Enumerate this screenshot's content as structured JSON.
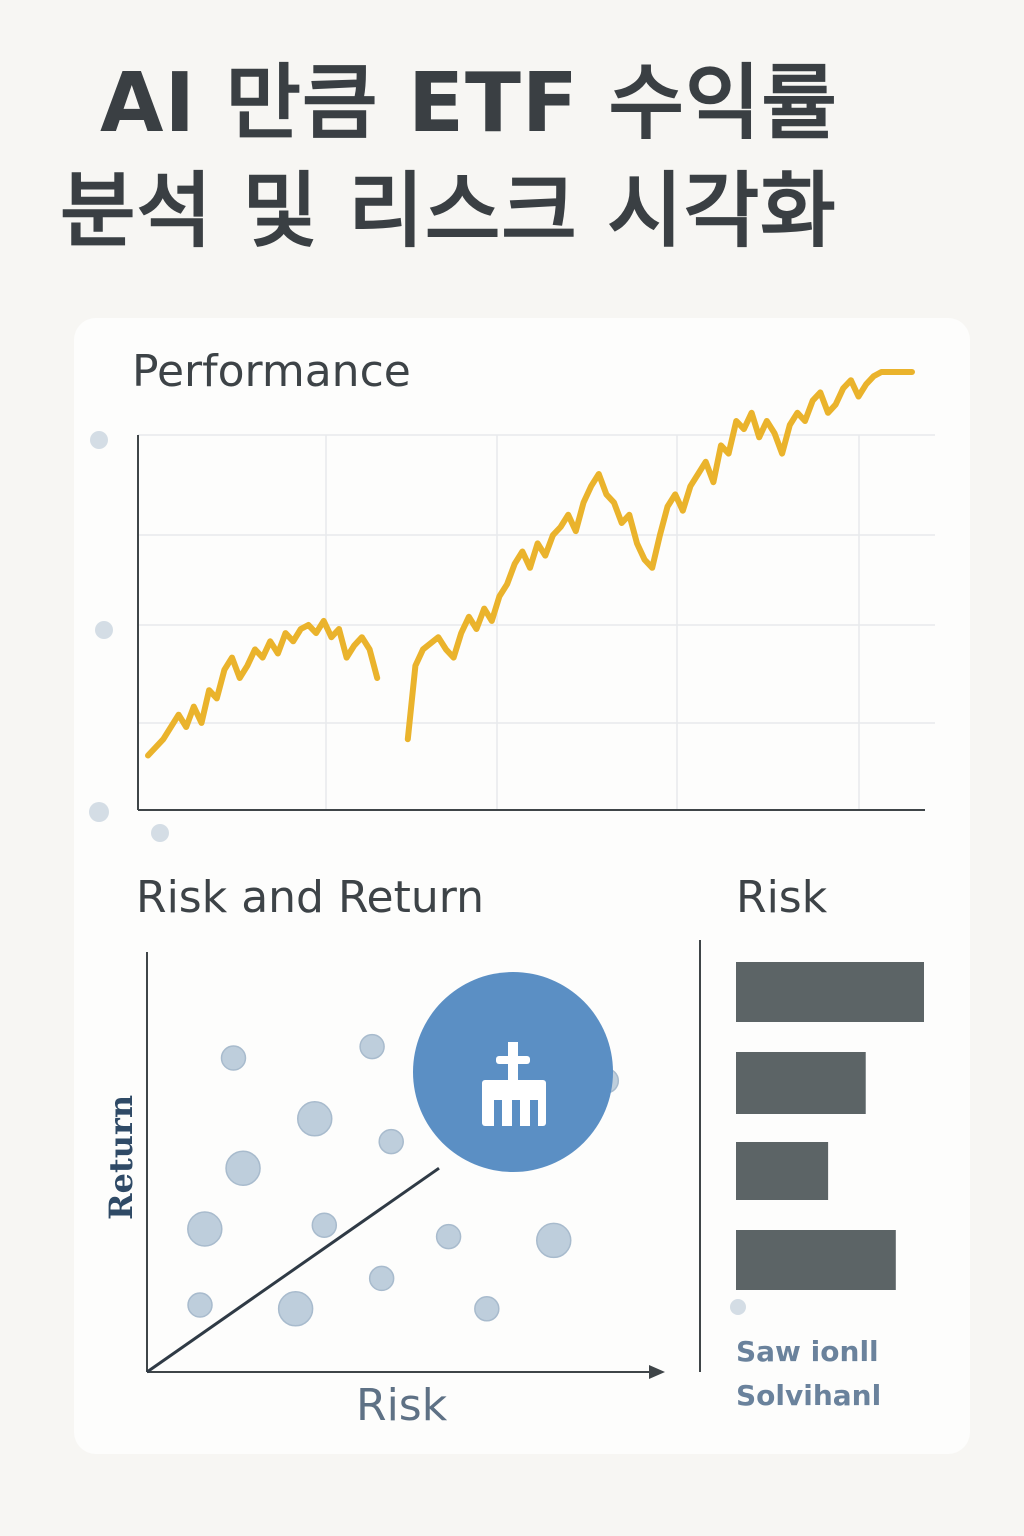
{
  "title": {
    "line1": "AI 만큼 ETF 수익률",
    "line2": "분석 및 리스크 시각화"
  },
  "performance": {
    "label": "Performance"
  },
  "risk_return": {
    "label": "Risk and Return",
    "y_axis_label": "Return",
    "x_axis_label": "Risk"
  },
  "risk_panel": {
    "label": "Risk",
    "footer_line1": "Saw ionll",
    "footer_line2": "Solvihanl"
  },
  "colors": {
    "line": "#eab32c",
    "bar": "#5c6466",
    "scatter": "#b8c9d9",
    "highlight": "#5b8fc4",
    "axis": "#3f4548"
  },
  "chart_data": [
    {
      "type": "line",
      "title": "Performance",
      "xlim": [
        0,
        100
      ],
      "ylim": [
        0,
        100
      ],
      "grid": true,
      "series": [
        {
          "segments": [
            {
              "x": [
                0,
                2,
                4,
                5,
                6,
                7,
                8,
                9,
                10,
                11,
                12,
                13,
                14,
                15,
                16,
                17,
                18,
                19,
                20,
                21,
                22,
                23,
                24,
                25,
                26,
                27,
                28,
                29,
                30
              ],
              "y": [
                6,
                10,
                16,
                13,
                18,
                14,
                22,
                20,
                27,
                30,
                25,
                28,
                32,
                30,
                34,
                31,
                36,
                34,
                37,
                38,
                36,
                39,
                35,
                37,
                30,
                33,
                35,
                32,
                25
              ]
            },
            {
              "x": [
                34,
                35,
                36,
                38,
                39,
                40,
                41,
                42,
                43,
                44,
                45,
                46,
                47,
                48,
                49,
                50,
                51,
                52,
                53,
                54,
                55,
                56,
                57,
                58,
                59,
                60,
                61,
                62,
                63,
                64,
                65,
                66,
                67,
                68,
                69,
                70,
                71,
                72,
                73,
                74,
                75,
                76,
                77,
                78,
                79,
                80,
                81,
                82,
                83,
                84,
                85,
                86,
                87,
                88,
                89,
                90,
                91,
                92,
                93,
                94,
                95,
                96,
                97,
                98,
                99,
                100
              ],
              "y": [
                10,
                28,
                32,
                35,
                32,
                30,
                36,
                40,
                37,
                42,
                39,
                45,
                48,
                53,
                56,
                52,
                58,
                55,
                60,
                62,
                65,
                61,
                68,
                72,
                75,
                70,
                68,
                63,
                65,
                58,
                54,
                52,
                60,
                67,
                70,
                66,
                72,
                75,
                78,
                73,
                82,
                80,
                88,
                86,
                90,
                84,
                88,
                85,
                80,
                87,
                90,
                88,
                93,
                95,
                90,
                92,
                96,
                98,
                94,
                97,
                99,
                100,
                101,
                100,
                102,
                104
              ]
            }
          ]
        }
      ]
    },
    {
      "type": "scatter",
      "title": "Risk and Return",
      "xlabel": "Risk",
      "ylabel": "Return",
      "xlim": [
        0,
        100
      ],
      "ylim": [
        0,
        100
      ],
      "points": [
        {
          "x": 16,
          "y": 80,
          "r": 1
        },
        {
          "x": 45,
          "y": 83,
          "r": 1
        },
        {
          "x": 33,
          "y": 64,
          "r": 2
        },
        {
          "x": 18,
          "y": 51,
          "r": 2
        },
        {
          "x": 10,
          "y": 35,
          "r": 2
        },
        {
          "x": 35,
          "y": 36,
          "r": 1
        },
        {
          "x": 49,
          "y": 58,
          "r": 1
        },
        {
          "x": 47,
          "y": 22,
          "r": 1
        },
        {
          "x": 61,
          "y": 33,
          "r": 1
        },
        {
          "x": 83,
          "y": 32,
          "r": 2
        },
        {
          "x": 29,
          "y": 14,
          "r": 2
        },
        {
          "x": 69,
          "y": 14,
          "r": 1
        },
        {
          "x": 9,
          "y": 15,
          "r": 1
        },
        {
          "x": 94,
          "y": 74,
          "r": 1
        }
      ],
      "highlight": {
        "x": 70,
        "y": 70
      },
      "trend": {
        "x": [
          0,
          59
        ],
        "y": [
          0,
          51
        ]
      }
    },
    {
      "type": "bar",
      "title": "Risk",
      "orientation": "horizontal",
      "values": [
        100,
        69,
        49,
        85
      ],
      "xlim": [
        0,
        100
      ]
    }
  ]
}
